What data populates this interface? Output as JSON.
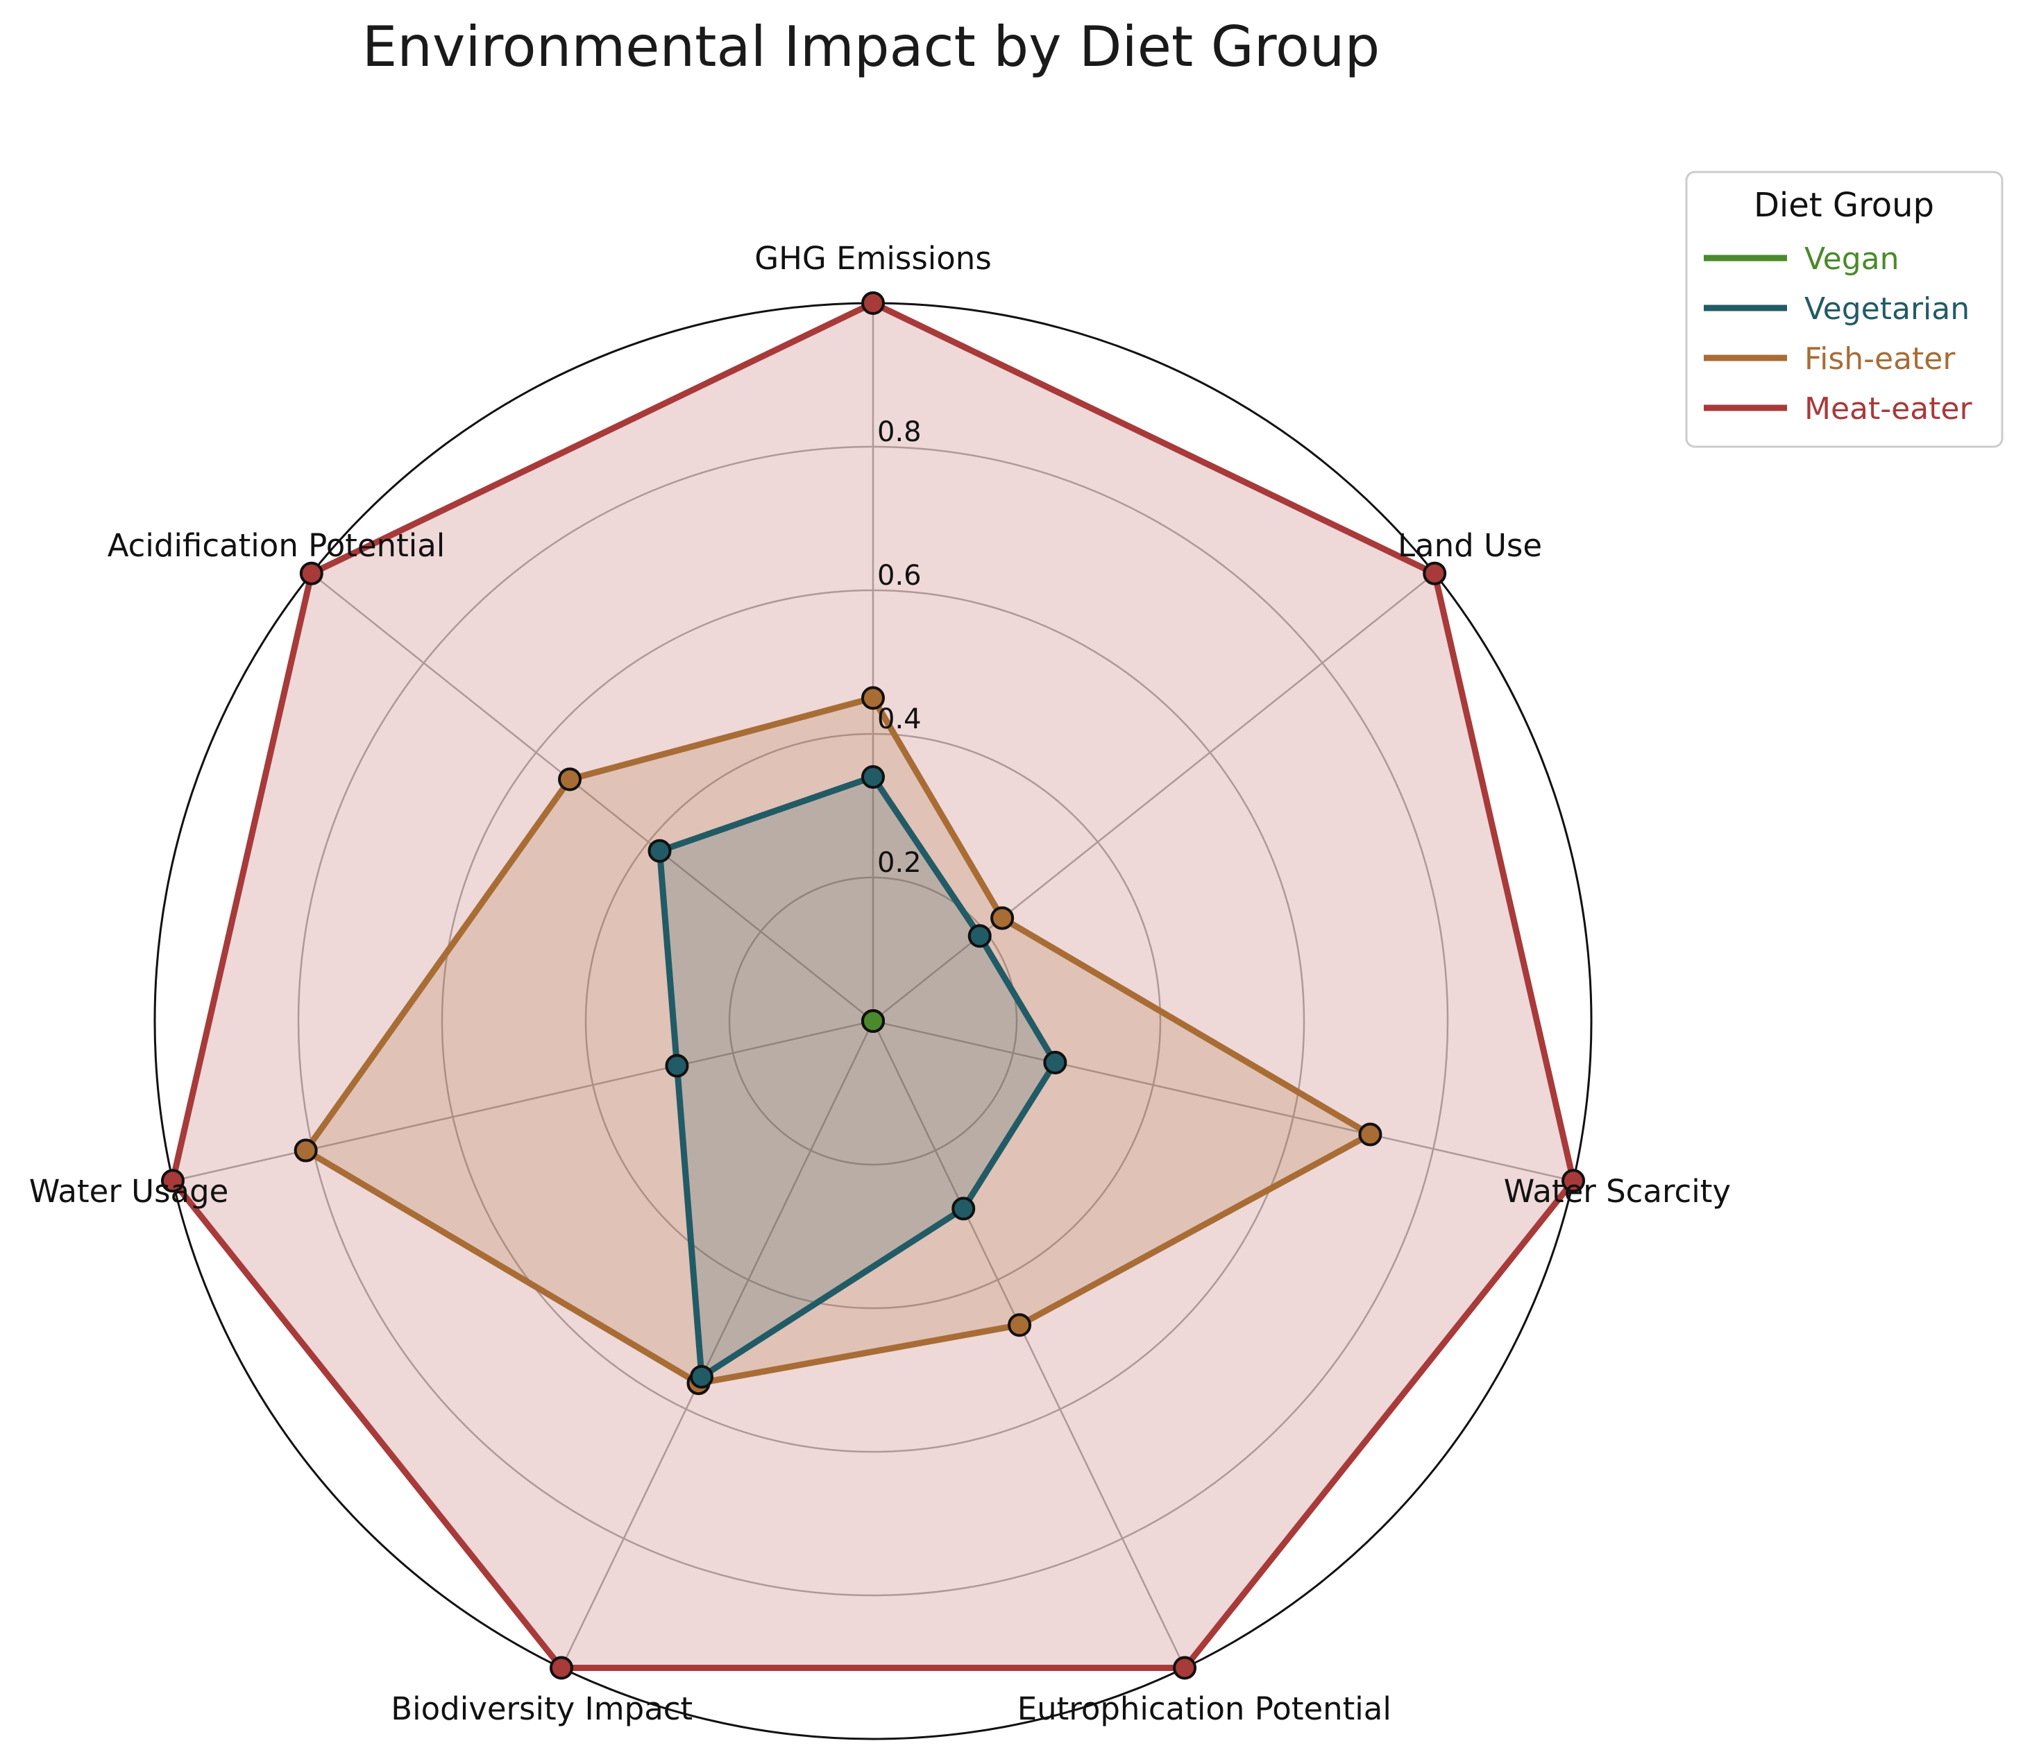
{
  "chart_data": {
    "type": "radar",
    "title": "Environmental Impact by Diet Group",
    "axes": [
      "GHG Emissions",
      "Land Use",
      "Water Scarcity",
      "Eutrophication Potential",
      "Biodiversity Impact",
      "Water Usage",
      "Acidification Potential"
    ],
    "rticks": [
      "0.2",
      "0.4",
      "0.6",
      "0.8"
    ],
    "rlim": [
      0,
      1
    ],
    "grid": true,
    "legend": {
      "title": "Diet Group",
      "placement": "top-right"
    },
    "series": [
      {
        "name": "Vegan",
        "color": "#4a8a2a",
        "fill": false,
        "values": [
          0,
          0,
          0,
          0,
          0,
          0,
          0
        ]
      },
      {
        "name": "Vegetarian",
        "color": "#215b66",
        "fill": true,
        "values": [
          0.34,
          0.19,
          0.26,
          0.29,
          0.55,
          0.28,
          0.38
        ]
      },
      {
        "name": "Fish-eater",
        "color": "#a86c35",
        "fill": true,
        "values": [
          0.45,
          0.23,
          0.71,
          0.47,
          0.56,
          0.81,
          0.54
        ]
      },
      {
        "name": "Meat-eater",
        "color": "#a83a3a",
        "fill": true,
        "values": [
          1,
          1,
          1,
          1,
          1,
          1,
          1
        ]
      }
    ]
  }
}
